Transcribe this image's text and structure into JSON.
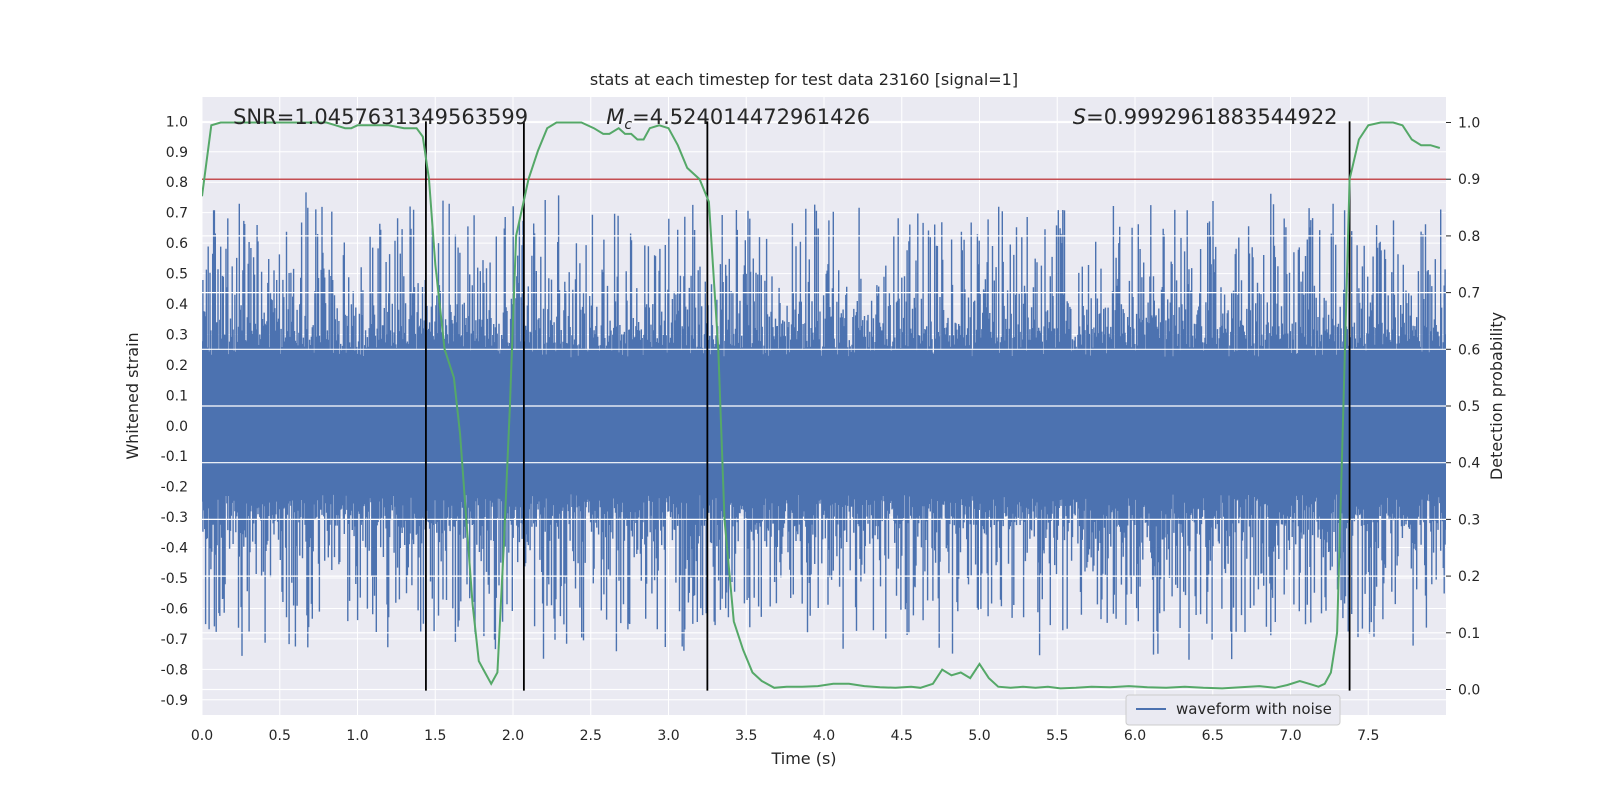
{
  "chart_data": {
    "type": "line",
    "title": "stats at each timestep for test data 23160 [signal=1]",
    "xlabel": "Time (s)",
    "ylabel": "Whitened strain",
    "ylabel_right": "Detection probability",
    "xlim": [
      0.0,
      8.0
    ],
    "ylim": [
      -0.95,
      1.08
    ],
    "ylim_right": [
      -0.045,
      1.045
    ],
    "x_ticks": [
      0.0,
      0.5,
      1.0,
      1.5,
      2.0,
      2.5,
      3.0,
      3.5,
      4.0,
      4.5,
      5.0,
      5.5,
      6.0,
      6.5,
      7.0,
      7.5
    ],
    "x_tick_labels": [
      "0.0",
      "0.5",
      "1.0",
      "1.5",
      "2.0",
      "2.5",
      "3.0",
      "3.5",
      "4.0",
      "4.5",
      "5.0",
      "5.5",
      "6.0",
      "6.5",
      "7.0",
      "7.5"
    ],
    "y_ticks": [
      1.0,
      0.9,
      0.8,
      0.7,
      0.6,
      0.5,
      0.4,
      0.3,
      0.2,
      0.1,
      0.0,
      -0.1,
      -0.2,
      -0.3,
      -0.4,
      -0.5,
      -0.6,
      -0.7,
      -0.8,
      -0.9
    ],
    "y_tick_labels": [
      "1.0",
      "0.9",
      "0.8",
      "0.7",
      "0.6",
      "0.5",
      "0.4",
      "0.3",
      "0.2",
      "0.1",
      "0.0",
      "-0.1",
      "-0.2",
      "-0.3",
      "-0.4",
      "-0.5",
      "-0.6",
      "-0.7",
      "-0.8",
      "-0.9"
    ],
    "y_right_ticks": [
      1.0,
      0.9,
      0.8,
      0.7,
      0.6,
      0.5,
      0.4,
      0.3,
      0.2,
      0.1,
      0.0
    ],
    "y_right_tick_labels": [
      "1.0",
      "0.9",
      "0.8",
      "0.7",
      "0.6",
      "0.5",
      "0.4",
      "0.3",
      "0.2",
      "0.1",
      "0.0"
    ],
    "grid": true,
    "legend_position": "lower-right",
    "annotations": [
      {
        "text": "SNR=1.0457631349563599",
        "x": 0.2
      },
      {
        "text": "=4.524014472961426",
        "x": 2.6,
        "math_prefix": "M",
        "math_sub": "c"
      },
      {
        "text": "=0.9992961883544922",
        "x": 5.6,
        "math_prefix": "S"
      }
    ],
    "series": [
      {
        "name": "waveform with noise",
        "color": "#4c72b0",
        "kind": "noisy-waveform",
        "typical_amplitude": 0.3,
        "peak_max": 0.91,
        "peak_min": -0.87
      },
      {
        "kind": "detection-probability",
        "axis": "right",
        "color": "#55a868",
        "x": [
          0.0,
          0.06,
          0.12,
          0.2,
          0.3,
          0.4,
          0.5,
          0.6,
          0.7,
          0.8,
          0.86,
          0.92,
          0.96,
          1.0,
          1.1,
          1.2,
          1.3,
          1.38,
          1.42,
          1.46,
          1.5,
          1.56,
          1.62,
          1.66,
          1.7,
          1.74,
          1.78,
          1.82,
          1.86,
          1.9,
          1.94,
          1.98,
          2.02,
          2.06,
          2.1,
          2.16,
          2.22,
          2.28,
          2.36,
          2.44,
          2.52,
          2.58,
          2.62,
          2.68,
          2.72,
          2.76,
          2.8,
          2.84,
          2.88,
          2.94,
          3.0,
          3.06,
          3.12,
          3.2,
          3.26,
          3.32,
          3.36,
          3.42,
          3.48,
          3.54,
          3.6,
          3.68,
          3.76,
          3.86,
          3.96,
          4.06,
          4.16,
          4.26,
          4.36,
          4.46,
          4.56,
          4.62,
          4.7,
          4.76,
          4.82,
          4.88,
          4.94,
          5.0,
          5.06,
          5.12,
          5.2,
          5.28,
          5.36,
          5.44,
          5.52,
          5.62,
          5.72,
          5.84,
          5.96,
          6.08,
          6.2,
          6.32,
          6.44,
          6.56,
          6.68,
          6.8,
          6.9,
          6.98,
          7.06,
          7.12,
          7.18,
          7.22,
          7.26,
          7.3,
          7.34,
          7.38,
          7.44,
          7.5,
          7.58,
          7.66,
          7.72,
          7.78,
          7.84,
          7.9,
          7.96
        ],
        "y": [
          0.87,
          0.995,
          1.0,
          1.0,
          1.0,
          1.0,
          1.0,
          1.0,
          1.0,
          1.0,
          0.995,
          0.99,
          0.99,
          0.995,
          0.995,
          0.995,
          0.99,
          0.99,
          0.975,
          0.9,
          0.75,
          0.6,
          0.55,
          0.45,
          0.3,
          0.15,
          0.05,
          0.03,
          0.01,
          0.03,
          0.25,
          0.5,
          0.8,
          0.85,
          0.9,
          0.95,
          0.99,
          1.0,
          1.0,
          1.0,
          0.99,
          0.98,
          0.98,
          0.99,
          0.98,
          0.98,
          0.97,
          0.97,
          0.99,
          0.995,
          0.99,
          0.96,
          0.92,
          0.9,
          0.86,
          0.6,
          0.3,
          0.12,
          0.07,
          0.03,
          0.015,
          0.003,
          0.005,
          0.005,
          0.006,
          0.01,
          0.01,
          0.006,
          0.004,
          0.003,
          0.005,
          0.003,
          0.01,
          0.035,
          0.025,
          0.03,
          0.02,
          0.045,
          0.02,
          0.005,
          0.003,
          0.005,
          0.003,
          0.005,
          0.002,
          0.003,
          0.005,
          0.004,
          0.006,
          0.004,
          0.003,
          0.005,
          0.003,
          0.002,
          0.004,
          0.006,
          0.003,
          0.008,
          0.015,
          0.01,
          0.005,
          0.01,
          0.03,
          0.1,
          0.5,
          0.9,
          0.97,
          0.995,
          1.0,
          1.0,
          0.995,
          0.97,
          0.96,
          0.96,
          0.955
        ]
      }
    ],
    "threshold_line": {
      "axis": "right",
      "value": 0.9,
      "color": "#c44e52"
    },
    "vertical_markers": {
      "x": [
        1.44,
        2.07,
        3.25,
        7.38
      ],
      "ymax": 1.0,
      "ymin": -0.87,
      "color": "#000000"
    }
  }
}
